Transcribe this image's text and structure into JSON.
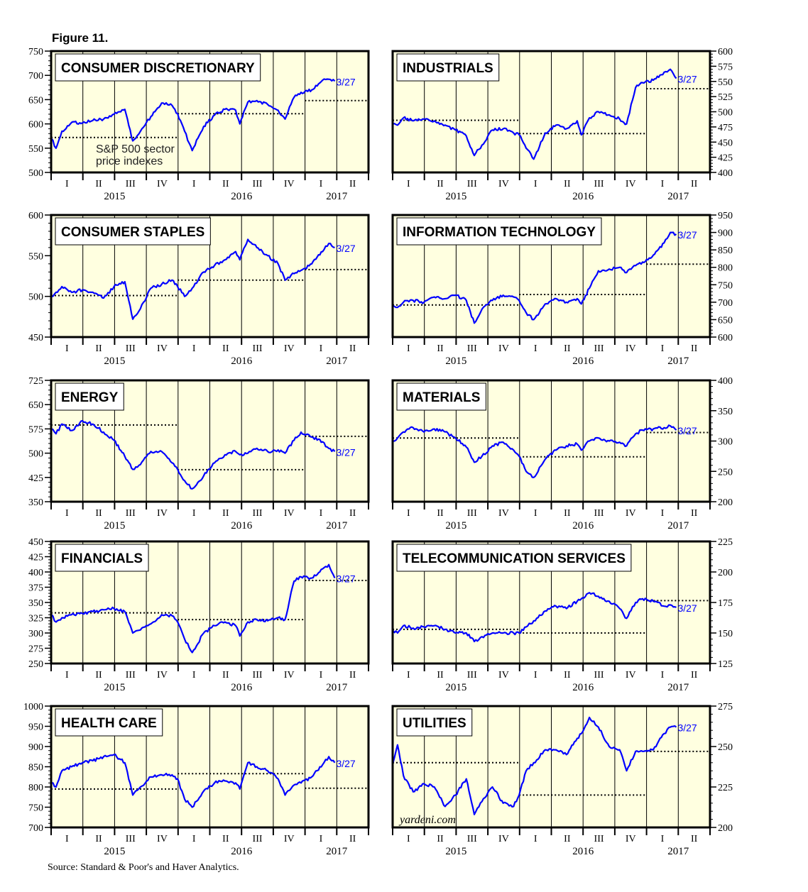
{
  "figure_title": "Figure 11.",
  "source": "Source: Standard & Poor's and Haver Analytics.",
  "watermark": "yardeni.com",
  "annotation": [
    "S&P 500 sector",
    "price indexes"
  ],
  "colors": {
    "line": "#0000FF",
    "plot_bg": "#FFFFE0",
    "reference": "#000000"
  },
  "quarter_labels": [
    "I",
    "II",
    "III",
    "IV",
    "I",
    "II",
    "III",
    "IV",
    "I",
    "II"
  ],
  "year_labels": [
    "2015",
    "2016",
    "2017"
  ],
  "chart_data": [
    {
      "type": "line",
      "title": "CONSUMER DISCRETIONARY",
      "ylim": [
        500,
        750
      ],
      "yticks": [
        500,
        550,
        600,
        650,
        700,
        750
      ],
      "end_label": "3/27",
      "x": [
        "2015-01-02",
        "2015-01-15",
        "2015-02-01",
        "2015-03-01",
        "2015-04-01",
        "2015-05-01",
        "2015-06-01",
        "2015-07-01",
        "2015-08-01",
        "2015-08-24",
        "2015-09-15",
        "2015-10-15",
        "2015-11-15",
        "2015-12-15",
        "2015-12-31",
        "2016-01-20",
        "2016-02-11",
        "2016-03-15",
        "2016-04-15",
        "2016-05-15",
        "2016-06-15",
        "2016-06-27",
        "2016-07-20",
        "2016-08-15",
        "2016-09-15",
        "2016-10-15",
        "2016-11-04",
        "2016-11-30",
        "2016-12-20",
        "2017-01-20",
        "2017-02-20",
        "2017-03-10",
        "2017-03-27"
      ],
      "y": [
        570,
        550,
        585,
        603,
        602,
        607,
        610,
        620,
        630,
        565,
        585,
        615,
        643,
        638,
        621,
        585,
        545,
        595,
        618,
        630,
        628,
        600,
        645,
        648,
        640,
        628,
        610,
        655,
        665,
        670,
        690,
        692,
        688
      ],
      "reference_lines": [
        {
          "from": "2015-01-01",
          "to": "2015-12-31",
          "value": 572
        },
        {
          "from": "2015-12-31",
          "to": "2016-12-31",
          "value": 621
        },
        {
          "from": "2016-12-31",
          "to": "2017-06-30",
          "value": 648
        }
      ]
    },
    {
      "type": "line",
      "title": "INDUSTRIALS",
      "ylim": [
        400,
        600
      ],
      "yticks": [
        400,
        425,
        450,
        475,
        500,
        525,
        550,
        575,
        600
      ],
      "end_label": "3/27",
      "x": [
        "2015-01-02",
        "2015-01-15",
        "2015-02-01",
        "2015-03-01",
        "2015-04-01",
        "2015-05-01",
        "2015-06-01",
        "2015-07-01",
        "2015-08-01",
        "2015-08-24",
        "2015-09-15",
        "2015-10-15",
        "2015-11-15",
        "2015-12-15",
        "2015-12-31",
        "2016-01-20",
        "2016-02-11",
        "2016-03-15",
        "2016-04-15",
        "2016-05-15",
        "2016-06-15",
        "2016-06-27",
        "2016-07-20",
        "2016-08-15",
        "2016-09-15",
        "2016-10-15",
        "2016-11-04",
        "2016-11-30",
        "2016-12-20",
        "2017-01-20",
        "2017-02-20",
        "2017-03-10",
        "2017-03-27"
      ],
      "y": [
        480,
        478,
        490,
        485,
        488,
        485,
        478,
        470,
        460,
        428,
        445,
        470,
        472,
        465,
        462,
        440,
        422,
        465,
        478,
        472,
        485,
        462,
        490,
        500,
        495,
        488,
        480,
        540,
        548,
        552,
        565,
        570,
        555
      ],
      "reference_lines": [
        {
          "from": "2015-01-01",
          "to": "2015-12-31",
          "value": 486
        },
        {
          "from": "2015-12-31",
          "to": "2016-12-31",
          "value": 464
        },
        {
          "from": "2016-12-31",
          "to": "2017-06-30",
          "value": 538
        }
      ]
    },
    {
      "type": "line",
      "title": "CONSUMER STAPLES",
      "ylim": [
        450,
        600
      ],
      "yticks": [
        450,
        500,
        550,
        600
      ],
      "end_label": "3/27",
      "x": [
        "2015-01-02",
        "2015-01-15",
        "2015-02-01",
        "2015-03-01",
        "2015-04-01",
        "2015-05-01",
        "2015-06-01",
        "2015-07-01",
        "2015-08-01",
        "2015-08-24",
        "2015-09-15",
        "2015-10-15",
        "2015-11-15",
        "2015-12-15",
        "2015-12-31",
        "2016-01-20",
        "2016-02-11",
        "2016-03-15",
        "2016-04-15",
        "2016-05-15",
        "2016-06-15",
        "2016-06-27",
        "2016-07-20",
        "2016-08-15",
        "2016-09-15",
        "2016-10-15",
        "2016-11-04",
        "2016-11-30",
        "2016-12-20",
        "2017-01-20",
        "2017-02-20",
        "2017-03-10",
        "2017-03-27"
      ],
      "y": [
        500,
        505,
        512,
        505,
        508,
        505,
        498,
        512,
        518,
        472,
        485,
        510,
        515,
        520,
        512,
        500,
        510,
        530,
        538,
        545,
        555,
        545,
        570,
        560,
        550,
        540,
        520,
        528,
        532,
        540,
        555,
        565,
        560
      ],
      "reference_lines": [
        {
          "from": "2015-01-01",
          "to": "2015-12-31",
          "value": 501
        },
        {
          "from": "2015-12-31",
          "to": "2016-12-31",
          "value": 520
        },
        {
          "from": "2016-12-31",
          "to": "2017-06-30",
          "value": 533
        }
      ]
    },
    {
      "type": "line",
      "title": "INFORMATION TECHNOLOGY",
      "ylim": [
        600,
        950
      ],
      "yticks": [
        600,
        650,
        700,
        750,
        800,
        850,
        900,
        950
      ],
      "end_label": "3/27",
      "x": [
        "2015-01-02",
        "2015-01-15",
        "2015-02-01",
        "2015-03-01",
        "2015-04-01",
        "2015-05-01",
        "2015-06-01",
        "2015-07-01",
        "2015-08-01",
        "2015-08-24",
        "2015-09-15",
        "2015-10-15",
        "2015-11-15",
        "2015-12-15",
        "2015-12-31",
        "2016-01-20",
        "2016-02-11",
        "2016-03-15",
        "2016-04-15",
        "2016-05-15",
        "2016-06-15",
        "2016-06-27",
        "2016-07-20",
        "2016-08-15",
        "2016-09-15",
        "2016-10-15",
        "2016-11-04",
        "2016-11-30",
        "2016-12-20",
        "2017-01-20",
        "2017-02-20",
        "2017-03-10",
        "2017-03-27"
      ],
      "y": [
        690,
        685,
        700,
        705,
        700,
        715,
        710,
        720,
        705,
        640,
        680,
        705,
        720,
        715,
        705,
        670,
        650,
        695,
        710,
        700,
        710,
        695,
        740,
        790,
        795,
        800,
        785,
        805,
        815,
        835,
        870,
        900,
        895
      ],
      "reference_lines": [
        {
          "from": "2015-01-01",
          "to": "2015-12-31",
          "value": 692
        },
        {
          "from": "2015-12-31",
          "to": "2016-12-31",
          "value": 722
        },
        {
          "from": "2016-12-31",
          "to": "2017-06-30",
          "value": 809
        }
      ]
    },
    {
      "type": "line",
      "title": "ENERGY",
      "ylim": [
        350,
        725
      ],
      "yticks": [
        350,
        425,
        500,
        575,
        650,
        725
      ],
      "end_label": "3/27",
      "x": [
        "2015-01-02",
        "2015-01-15",
        "2015-02-01",
        "2015-03-01",
        "2015-04-01",
        "2015-05-01",
        "2015-06-01",
        "2015-07-01",
        "2015-08-01",
        "2015-08-24",
        "2015-09-15",
        "2015-10-15",
        "2015-11-15",
        "2015-12-15",
        "2015-12-31",
        "2016-01-20",
        "2016-02-11",
        "2016-03-15",
        "2016-04-15",
        "2016-05-15",
        "2016-06-15",
        "2016-06-27",
        "2016-07-20",
        "2016-08-15",
        "2016-09-15",
        "2016-10-15",
        "2016-11-04",
        "2016-11-30",
        "2016-12-20",
        "2017-01-20",
        "2017-02-20",
        "2017-03-10",
        "2017-03-27"
      ],
      "y": [
        575,
        560,
        590,
        570,
        600,
        590,
        565,
        540,
        490,
        450,
        465,
        505,
        505,
        470,
        450,
        415,
        390,
        430,
        470,
        495,
        505,
        495,
        500,
        515,
        505,
        510,
        500,
        540,
        565,
        550,
        535,
        515,
        505
      ],
      "reference_lines": [
        {
          "from": "2015-01-01",
          "to": "2015-12-31",
          "value": 587
        },
        {
          "from": "2015-12-31",
          "to": "2016-12-31",
          "value": 449
        },
        {
          "from": "2016-12-31",
          "to": "2017-06-30",
          "value": 552
        }
      ]
    },
    {
      "type": "line",
      "title": "MATERIALS",
      "ylim": [
        200,
        400
      ],
      "yticks": [
        200,
        250,
        300,
        350,
        400
      ],
      "end_label": "3/27",
      "x": [
        "2015-01-02",
        "2015-01-15",
        "2015-02-01",
        "2015-03-01",
        "2015-04-01",
        "2015-05-01",
        "2015-06-01",
        "2015-07-01",
        "2015-08-01",
        "2015-08-24",
        "2015-09-15",
        "2015-10-15",
        "2015-11-15",
        "2015-12-15",
        "2015-12-31",
        "2016-01-20",
        "2016-02-11",
        "2016-03-15",
        "2016-04-15",
        "2016-05-15",
        "2016-06-15",
        "2016-06-27",
        "2016-07-20",
        "2016-08-15",
        "2016-09-15",
        "2016-10-15",
        "2016-11-04",
        "2016-11-30",
        "2016-12-20",
        "2017-01-20",
        "2017-02-20",
        "2017-03-10",
        "2017-03-27"
      ],
      "y": [
        300,
        305,
        315,
        322,
        315,
        320,
        315,
        305,
        290,
        265,
        275,
        292,
        298,
        285,
        275,
        250,
        240,
        270,
        285,
        292,
        295,
        285,
        300,
        305,
        300,
        298,
        292,
        312,
        318,
        320,
        322,
        325,
        318
      ],
      "reference_lines": [
        {
          "from": "2015-01-01",
          "to": "2015-12-31",
          "value": 305
        },
        {
          "from": "2015-12-31",
          "to": "2016-12-31",
          "value": 274
        },
        {
          "from": "2016-12-31",
          "to": "2017-06-30",
          "value": 314
        }
      ]
    },
    {
      "type": "line",
      "title": "FINANCIALS",
      "ylim": [
        250,
        450
      ],
      "yticks": [
        250,
        275,
        300,
        325,
        350,
        375,
        400,
        425,
        450
      ],
      "end_label": "3/27",
      "x": [
        "2015-01-02",
        "2015-01-15",
        "2015-02-01",
        "2015-03-01",
        "2015-04-01",
        "2015-05-01",
        "2015-06-01",
        "2015-07-01",
        "2015-08-01",
        "2015-08-24",
        "2015-09-15",
        "2015-10-15",
        "2015-11-15",
        "2015-12-15",
        "2015-12-31",
        "2016-01-20",
        "2016-02-11",
        "2016-03-15",
        "2016-04-15",
        "2016-05-15",
        "2016-06-15",
        "2016-06-27",
        "2016-07-20",
        "2016-08-15",
        "2016-09-15",
        "2016-10-15",
        "2016-11-04",
        "2016-11-30",
        "2016-12-20",
        "2017-01-20",
        "2017-02-20",
        "2017-03-10",
        "2017-03-27"
      ],
      "y": [
        330,
        318,
        325,
        330,
        332,
        335,
        338,
        340,
        335,
        300,
        305,
        315,
        330,
        328,
        318,
        290,
        268,
        300,
        312,
        318,
        312,
        295,
        318,
        322,
        320,
        325,
        322,
        385,
        392,
        390,
        405,
        412,
        390
      ],
      "reference_lines": [
        {
          "from": "2015-01-01",
          "to": "2015-12-31",
          "value": 333
        },
        {
          "from": "2015-12-31",
          "to": "2016-12-31",
          "value": 322
        },
        {
          "from": "2016-12-31",
          "to": "2017-06-30",
          "value": 386
        }
      ]
    },
    {
      "type": "line",
      "title": "TELECOMMUNICATION SERVICES",
      "ylim": [
        125,
        225
      ],
      "yticks": [
        125,
        150,
        175,
        200,
        225
      ],
      "end_label": "3/27",
      "x": [
        "2015-01-02",
        "2015-01-15",
        "2015-02-01",
        "2015-03-01",
        "2015-04-01",
        "2015-05-01",
        "2015-06-01",
        "2015-07-01",
        "2015-08-01",
        "2015-08-24",
        "2015-09-15",
        "2015-10-15",
        "2015-11-15",
        "2015-12-15",
        "2015-12-31",
        "2016-01-20",
        "2016-02-11",
        "2016-03-15",
        "2016-04-15",
        "2016-05-15",
        "2016-06-15",
        "2016-06-27",
        "2016-07-20",
        "2016-08-15",
        "2016-09-15",
        "2016-10-15",
        "2016-11-04",
        "2016-11-30",
        "2016-12-20",
        "2017-01-20",
        "2017-02-20",
        "2017-03-10",
        "2017-03-27"
      ],
      "y": [
        152,
        150,
        156,
        154,
        155,
        156,
        153,
        150,
        150,
        143,
        147,
        150,
        150,
        150,
        150,
        155,
        160,
        168,
        172,
        170,
        176,
        178,
        183,
        180,
        176,
        170,
        162,
        175,
        178,
        176,
        172,
        173,
        171
      ],
      "reference_lines": [
        {
          "from": "2015-01-01",
          "to": "2015-12-31",
          "value": 153
        },
        {
          "from": "2015-12-31",
          "to": "2016-12-31",
          "value": 150
        },
        {
          "from": "2016-12-31",
          "to": "2017-06-30",
          "value": 176.5
        }
      ]
    },
    {
      "type": "line",
      "title": "HEALTH CARE",
      "ylim": [
        700,
        1000
      ],
      "yticks": [
        700,
        750,
        800,
        850,
        900,
        950,
        1000
      ],
      "end_label": "3/27",
      "x": [
        "2015-01-02",
        "2015-01-15",
        "2015-02-01",
        "2015-03-01",
        "2015-04-01",
        "2015-05-01",
        "2015-06-01",
        "2015-07-01",
        "2015-08-01",
        "2015-08-24",
        "2015-09-15",
        "2015-10-15",
        "2015-11-15",
        "2015-12-15",
        "2015-12-31",
        "2016-01-20",
        "2016-02-11",
        "2016-03-15",
        "2016-04-15",
        "2016-05-15",
        "2016-06-15",
        "2016-06-27",
        "2016-07-20",
        "2016-08-15",
        "2016-09-15",
        "2016-10-15",
        "2016-11-04",
        "2016-11-30",
        "2016-12-20",
        "2017-01-20",
        "2017-02-20",
        "2017-03-10",
        "2017-03-27"
      ],
      "y": [
        810,
        800,
        840,
        850,
        860,
        865,
        875,
        880,
        860,
        780,
        800,
        825,
        830,
        830,
        820,
        770,
        750,
        790,
        810,
        815,
        810,
        795,
        860,
        850,
        840,
        820,
        780,
        805,
        810,
        825,
        855,
        875,
        860
      ],
      "reference_lines": [
        {
          "from": "2015-01-01",
          "to": "2015-12-31",
          "value": 795
        },
        {
          "from": "2015-12-31",
          "to": "2016-12-31",
          "value": 833
        },
        {
          "from": "2016-12-31",
          "to": "2017-06-30",
          "value": 797
        }
      ]
    },
    {
      "type": "line",
      "title": "UTILITIES",
      "ylim": [
        200,
        275
      ],
      "yticks": [
        200,
        225,
        250,
        275
      ],
      "end_label": "3/27",
      "x": [
        "2015-01-02",
        "2015-01-15",
        "2015-02-01",
        "2015-03-01",
        "2015-04-01",
        "2015-05-01",
        "2015-06-01",
        "2015-07-01",
        "2015-08-01",
        "2015-08-24",
        "2015-09-15",
        "2015-10-15",
        "2015-11-15",
        "2015-12-15",
        "2015-12-31",
        "2016-01-20",
        "2016-02-11",
        "2016-03-15",
        "2016-04-15",
        "2016-05-15",
        "2016-06-15",
        "2016-06-27",
        "2016-07-20",
        "2016-08-15",
        "2016-09-15",
        "2016-10-15",
        "2016-11-04",
        "2016-11-30",
        "2016-12-20",
        "2017-01-20",
        "2017-02-20",
        "2017-03-10",
        "2017-03-27"
      ],
      "y": [
        240,
        251,
        232,
        222,
        227,
        225,
        213,
        220,
        230,
        208,
        216,
        225,
        215,
        213,
        220,
        235,
        240,
        248,
        248,
        245,
        255,
        258,
        268,
        262,
        250,
        248,
        235,
        247,
        247,
        248,
        258,
        262,
        262
      ],
      "reference_lines": [
        {
          "from": "2015-01-01",
          "to": "2015-12-31",
          "value": 240
        },
        {
          "from": "2015-12-31",
          "to": "2016-12-31",
          "value": 220
        },
        {
          "from": "2016-12-31",
          "to": "2017-06-30",
          "value": 247
        }
      ]
    }
  ]
}
